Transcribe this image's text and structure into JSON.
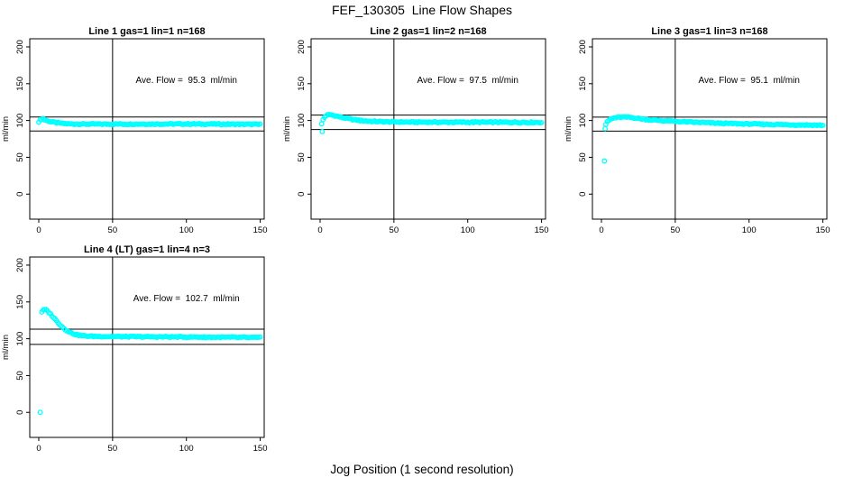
{
  "page": {
    "title": "FEF_130305  Line Flow Shapes",
    "xlabel": "Jog Position (1 second resolution)",
    "background": "#ffffff"
  },
  "colors": {
    "points": "#00ffff",
    "axis": "#000000",
    "text": "#000000"
  },
  "chart_data": [
    {
      "type": "scatter",
      "line": 1,
      "title": "Line 1 gas=1 lin=1 n=168",
      "annotation": "Ave. Flow =  95.3  ml/min",
      "ave_flow_ml_min": 95.3,
      "n": 168,
      "ylabel": "ml/min",
      "xticks": [
        0,
        50,
        100,
        150
      ],
      "yticks": [
        0,
        50,
        100,
        150,
        200
      ],
      "xlim": [
        -6.1,
        152.7
      ],
      "ylim": [
        -34,
        211
      ],
      "vline_x": 50,
      "hlines": [
        104.8,
        85.8
      ],
      "series_keypoints": [
        [
          0,
          98.5
        ],
        [
          1,
          100.5
        ],
        [
          2,
          102
        ],
        [
          3,
          102.5
        ],
        [
          4,
          101
        ],
        [
          6,
          99.5
        ],
        [
          8,
          98.5
        ],
        [
          12,
          97
        ],
        [
          16,
          96
        ],
        [
          20,
          95.5
        ],
        [
          25,
          95.2
        ],
        [
          40,
          95
        ],
        [
          70,
          95.2
        ],
        [
          100,
          95.3
        ],
        [
          130,
          95
        ],
        [
          150,
          94.7
        ]
      ],
      "outliers": []
    },
    {
      "type": "scatter",
      "line": 2,
      "title": "Line 2 gas=1 lin=2 n=168",
      "annotation": "Ave. Flow =  97.5  ml/min",
      "ave_flow_ml_min": 97.5,
      "n": 168,
      "ylabel": "ml/min",
      "xticks": [
        0,
        50,
        100,
        150
      ],
      "yticks": [
        0,
        50,
        100,
        150,
        200
      ],
      "xlim": [
        -6.1,
        152.7
      ],
      "ylim": [
        -34,
        211
      ],
      "vline_x": 50,
      "hlines": [
        107.3,
        87.8
      ],
      "series_keypoints": [
        [
          1,
          95
        ],
        [
          2,
          101
        ],
        [
          3,
          104.5
        ],
        [
          4,
          106.5
        ],
        [
          5,
          107.5
        ],
        [
          7,
          107.8
        ],
        [
          9,
          107
        ],
        [
          12,
          105.5
        ],
        [
          15,
          104
        ],
        [
          18,
          102.8
        ],
        [
          22,
          101.5
        ],
        [
          26,
          100.3
        ],
        [
          30,
          99.5
        ],
        [
          36,
          98.8
        ],
        [
          45,
          98.2
        ],
        [
          60,
          97.8
        ],
        [
          90,
          97.6
        ],
        [
          120,
          97.6
        ],
        [
          150,
          97.4
        ]
      ],
      "outliers": [
        [
          1.5,
          85
        ]
      ]
    },
    {
      "type": "scatter",
      "line": 3,
      "title": "Line 3 gas=1 lin=3 n=168",
      "annotation": "Ave. Flow =  95.1  ml/min",
      "ave_flow_ml_min": 95.1,
      "n": 168,
      "ylabel": "ml/min",
      "xticks": [
        0,
        50,
        100,
        150
      ],
      "yticks": [
        0,
        50,
        100,
        150,
        200
      ],
      "xlim": [
        -6.1,
        152.7
      ],
      "ylim": [
        -34,
        211
      ],
      "vline_x": 50,
      "hlines": [
        104.6,
        85.6
      ],
      "series_keypoints": [
        [
          3,
          95
        ],
        [
          4,
          98
        ],
        [
          5,
          100
        ],
        [
          6,
          101.5
        ],
        [
          8,
          103
        ],
        [
          10,
          104
        ],
        [
          14,
          104.5
        ],
        [
          20,
          104.3
        ],
        [
          24,
          103
        ],
        [
          28,
          102
        ],
        [
          32,
          101
        ],
        [
          38,
          100.2
        ],
        [
          45,
          99.3
        ],
        [
          55,
          98.3
        ],
        [
          70,
          97
        ],
        [
          85,
          96
        ],
        [
          100,
          95.3
        ],
        [
          120,
          94.5
        ],
        [
          135,
          94
        ],
        [
          150,
          93.5
        ]
      ],
      "outliers": [
        [
          2,
          45
        ],
        [
          2.5,
          89
        ]
      ]
    },
    {
      "type": "scatter",
      "line": 4,
      "title": "Line 4 (LT) gas=1 lin=4 n=3",
      "annotation": "Ave. Flow =  102.7  ml/min",
      "ave_flow_ml_min": 102.7,
      "n": 3,
      "ylabel": "ml/min",
      "xticks": [
        0,
        50,
        100,
        150
      ],
      "yticks": [
        0,
        50,
        100,
        150,
        200
      ],
      "xlim": [
        -6.1,
        152.7
      ],
      "ylim": [
        -34,
        211
      ],
      "vline_x": 50,
      "hlines": [
        113.0,
        92.4
      ],
      "series_keypoints": [
        [
          2,
          136.5
        ],
        [
          3,
          138.5
        ],
        [
          4,
          139.5
        ],
        [
          5,
          139
        ],
        [
          6,
          137.5
        ],
        [
          7,
          135.5
        ],
        [
          8,
          133.5
        ],
        [
          10,
          129
        ],
        [
          12,
          124.5
        ],
        [
          14,
          120
        ],
        [
          16,
          116
        ],
        [
          18,
          112.5
        ],
        [
          20,
          110
        ],
        [
          22,
          108
        ],
        [
          24,
          106.5
        ],
        [
          26,
          105.3
        ],
        [
          28,
          104.5
        ],
        [
          30,
          104
        ],
        [
          34,
          103.5
        ],
        [
          40,
          103.2
        ],
        [
          50,
          103
        ],
        [
          65,
          102.7
        ],
        [
          80,
          102.5
        ],
        [
          100,
          102.4
        ],
        [
          120,
          102
        ],
        [
          135,
          101.8
        ],
        [
          150,
          101.5
        ]
      ],
      "outliers": [
        [
          1,
          0
        ]
      ]
    }
  ]
}
